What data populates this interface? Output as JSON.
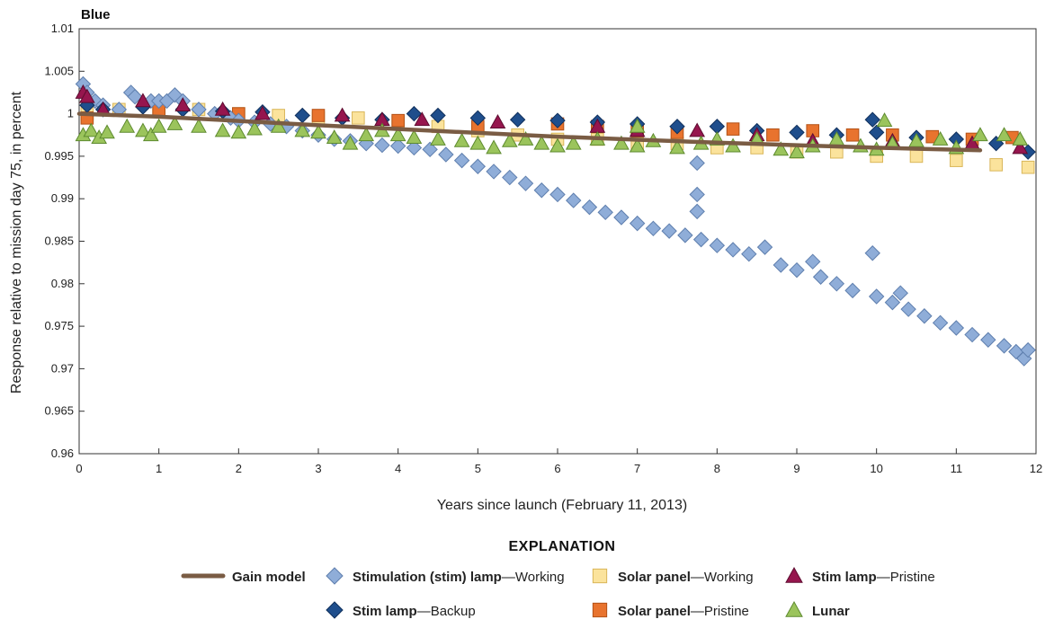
{
  "chart_data": {
    "type": "scatter",
    "title": "Blue",
    "xlabel": "Years since launch (February 11, 2013)",
    "ylabel": "Response relative to mission day 75, in percent",
    "xlim": [
      0,
      12
    ],
    "ylim": [
      0.96,
      1.01
    ],
    "xticks": [
      "0",
      "1",
      "2",
      "3",
      "4",
      "5",
      "6",
      "7",
      "8",
      "9",
      "10",
      "11",
      "12"
    ],
    "yticks": [
      "0.96",
      "0.965",
      "0.97",
      "0.975",
      "0.98",
      "0.985",
      "0.99",
      "0.995",
      "1",
      "1.005",
      "1.01"
    ],
    "grid": false,
    "legend_heading": "EXPLANATION",
    "legend_placement": "bottom",
    "series": [
      {
        "legend_bold": "Gain model",
        "legend_rest": "",
        "marker": "line",
        "color": "#7a5c44",
        "points": [
          [
            0.0,
            1.0
          ],
          [
            1,
            0.99965
          ],
          [
            2,
            0.99915
          ],
          [
            3,
            0.99865
          ],
          [
            4,
            0.9982
          ],
          [
            5,
            0.99775
          ],
          [
            6,
            0.9973
          ],
          [
            7,
            0.99695
          ],
          [
            8,
            0.9966
          ],
          [
            9,
            0.9963
          ],
          [
            10,
            0.996
          ],
          [
            11.3,
            0.9957
          ]
        ]
      },
      {
        "legend_bold": "Stimulation (stim) lamp",
        "legend_rest": "—Working",
        "marker": "diamond",
        "color": "#8fadd8",
        "stroke": "#5f7fae",
        "points": [
          [
            0.05,
            1.0035
          ],
          [
            0.1,
            1.0025
          ],
          [
            0.2,
            1.0015
          ],
          [
            0.3,
            1.001
          ],
          [
            0.5,
            1.0005
          ],
          [
            0.65,
            1.0025
          ],
          [
            0.7,
            1.002
          ],
          [
            0.9,
            1.0015
          ],
          [
            1.0,
            1.0015
          ],
          [
            1.1,
            1.0015
          ],
          [
            1.2,
            1.0022
          ],
          [
            1.3,
            1.0015
          ],
          [
            1.5,
            1.0005
          ],
          [
            1.7,
            1.0
          ],
          [
            1.9,
            0.9995
          ],
          [
            2.0,
            0.9992
          ],
          [
            2.2,
            0.999
          ],
          [
            2.4,
            0.9988
          ],
          [
            2.6,
            0.9985
          ],
          [
            2.8,
            0.998
          ],
          [
            3.0,
            0.9975
          ],
          [
            3.2,
            0.997
          ],
          [
            3.4,
            0.9968
          ],
          [
            3.6,
            0.9965
          ],
          [
            3.8,
            0.9963
          ],
          [
            4.0,
            0.9962
          ],
          [
            4.2,
            0.996
          ],
          [
            4.4,
            0.9958
          ],
          [
            4.6,
            0.9952
          ],
          [
            4.8,
            0.9945
          ],
          [
            5.0,
            0.9938
          ],
          [
            5.2,
            0.9932
          ],
          [
            5.4,
            0.9925
          ],
          [
            5.6,
            0.9918
          ],
          [
            5.8,
            0.991
          ],
          [
            6.0,
            0.9905
          ],
          [
            6.2,
            0.9898
          ],
          [
            6.4,
            0.989
          ],
          [
            6.6,
            0.9884
          ],
          [
            6.8,
            0.9878
          ],
          [
            7.0,
            0.9871
          ],
          [
            7.2,
            0.9865
          ],
          [
            7.4,
            0.9862
          ],
          [
            7.6,
            0.9857
          ],
          [
            7.75,
            0.9905
          ],
          [
            7.75,
            0.9885
          ],
          [
            7.75,
            0.9942
          ],
          [
            7.8,
            0.9852
          ],
          [
            8.0,
            0.9845
          ],
          [
            8.2,
            0.984
          ],
          [
            8.4,
            0.9835
          ],
          [
            8.6,
            0.9843
          ],
          [
            8.8,
            0.9822
          ],
          [
            9.0,
            0.9816
          ],
          [
            9.2,
            0.9826
          ],
          [
            9.3,
            0.9808
          ],
          [
            9.5,
            0.98
          ],
          [
            9.7,
            0.9792
          ],
          [
            9.95,
            0.9836
          ],
          [
            10.0,
            0.9785
          ],
          [
            10.2,
            0.9778
          ],
          [
            10.3,
            0.9789
          ],
          [
            10.4,
            0.977
          ],
          [
            10.6,
            0.9762
          ],
          [
            10.8,
            0.9754
          ],
          [
            11.0,
            0.9748
          ],
          [
            11.2,
            0.974
          ],
          [
            11.4,
            0.9734
          ],
          [
            11.6,
            0.9727
          ],
          [
            11.75,
            0.972
          ],
          [
            11.85,
            0.9712
          ],
          [
            11.9,
            0.9722
          ]
        ]
      },
      {
        "legend_bold": "Stim lamp",
        "legend_rest": "—Backup",
        "marker": "diamond",
        "color": "#1f4e8c",
        "stroke": "#10305c",
        "points": [
          [
            0.1,
            1.001
          ],
          [
            0.3,
            1.0005
          ],
          [
            0.8,
            1.0008
          ],
          [
            1.3,
            1.0005
          ],
          [
            1.8,
            1.0003
          ],
          [
            2.3,
            1.0002
          ],
          [
            2.8,
            0.9998
          ],
          [
            3.3,
            0.9995
          ],
          [
            3.8,
            0.9993
          ],
          [
            4.2,
            1.0
          ],
          [
            4.5,
            0.9998
          ],
          [
            5.0,
            0.9995
          ],
          [
            5.5,
            0.9993
          ],
          [
            6.0,
            0.9992
          ],
          [
            6.5,
            0.999
          ],
          [
            7.0,
            0.9988
          ],
          [
            7.5,
            0.9985
          ],
          [
            8.0,
            0.9985
          ],
          [
            8.5,
            0.998
          ],
          [
            9.0,
            0.9978
          ],
          [
            9.5,
            0.9975
          ],
          [
            9.95,
            0.9993
          ],
          [
            10.0,
            0.9978
          ],
          [
            10.5,
            0.9972
          ],
          [
            11.0,
            0.997
          ],
          [
            11.5,
            0.9965
          ],
          [
            11.9,
            0.9955
          ]
        ]
      },
      {
        "legend_bold": "Solar panel",
        "legend_rest": "—Working",
        "marker": "square",
        "color": "#fbe39c",
        "stroke": "#d9b659",
        "points": [
          [
            0.1,
            1.0
          ],
          [
            0.5,
            1.0005
          ],
          [
            1.0,
            1.0005
          ],
          [
            1.5,
            1.0005
          ],
          [
            2.0,
            1.0
          ],
          [
            2.5,
            0.9998
          ],
          [
            3.0,
            0.9995
          ],
          [
            3.5,
            0.9995
          ],
          [
            4.0,
            0.999
          ],
          [
            4.5,
            0.9985
          ],
          [
            5.0,
            0.998
          ],
          [
            5.5,
            0.9975
          ],
          [
            6.0,
            0.997
          ],
          [
            6.5,
            0.997
          ],
          [
            7.0,
            0.9965
          ],
          [
            7.5,
            0.9965
          ],
          [
            8.0,
            0.996
          ],
          [
            8.5,
            0.996
          ],
          [
            9.0,
            0.9955
          ],
          [
            9.5,
            0.9955
          ],
          [
            10.0,
            0.995
          ],
          [
            10.5,
            0.995
          ],
          [
            11.0,
            0.9945
          ],
          [
            11.5,
            0.994
          ],
          [
            11.9,
            0.9937
          ]
        ]
      },
      {
        "legend_bold": "Solar panel",
        "legend_rest": "—Pristine",
        "marker": "square",
        "color": "#e8732e",
        "stroke": "#b35218",
        "points": [
          [
            0.1,
            0.9995
          ],
          [
            1.0,
            1.0005
          ],
          [
            2.0,
            1.0
          ],
          [
            3.0,
            0.9998
          ],
          [
            4.0,
            0.9992
          ],
          [
            5.0,
            0.9985
          ],
          [
            6.0,
            0.9988
          ],
          [
            6.5,
            0.9985
          ],
          [
            7.0,
            0.998
          ],
          [
            7.5,
            0.9978
          ],
          [
            8.2,
            0.9982
          ],
          [
            8.7,
            0.9975
          ],
          [
            9.2,
            0.998
          ],
          [
            9.7,
            0.9975
          ],
          [
            10.2,
            0.9975
          ],
          [
            10.7,
            0.9973
          ],
          [
            11.2,
            0.997
          ],
          [
            11.7,
            0.9972
          ]
        ]
      },
      {
        "legend_bold": "Stim lamp",
        "legend_rest": "—Pristine",
        "marker": "triangle",
        "color": "#96164e",
        "stroke": "#5e0c30",
        "points": [
          [
            0.05,
            1.0025
          ],
          [
            0.1,
            1.002
          ],
          [
            0.3,
            1.0005
          ],
          [
            0.8,
            1.0015
          ],
          [
            1.3,
            1.001
          ],
          [
            1.8,
            1.0005
          ],
          [
            2.3,
            1.0
          ],
          [
            3.3,
            0.9998
          ],
          [
            3.8,
            0.9993
          ],
          [
            4.3,
            0.9993
          ],
          [
            5.25,
            0.999
          ],
          [
            6.5,
            0.9985
          ],
          [
            7.0,
            0.998
          ],
          [
            7.75,
            0.998
          ],
          [
            8.5,
            0.9975
          ],
          [
            9.2,
            0.9968
          ],
          [
            10.2,
            0.9968
          ],
          [
            11.2,
            0.9965
          ],
          [
            11.8,
            0.996
          ]
        ]
      },
      {
        "legend_bold": "Lunar",
        "legend_rest": "",
        "marker": "triangle",
        "color": "#9bc45c",
        "stroke": "#5d8a2e",
        "points": [
          [
            0.05,
            0.9975
          ],
          [
            0.15,
            0.998
          ],
          [
            0.25,
            0.9972
          ],
          [
            0.35,
            0.9978
          ],
          [
            0.6,
            0.9985
          ],
          [
            0.8,
            0.998
          ],
          [
            0.9,
            0.9975
          ],
          [
            1.0,
            0.9985
          ],
          [
            1.2,
            0.9988
          ],
          [
            1.5,
            0.9985
          ],
          [
            1.8,
            0.998
          ],
          [
            2.0,
            0.9978
          ],
          [
            2.2,
            0.9982
          ],
          [
            2.5,
            0.9985
          ],
          [
            2.8,
            0.998
          ],
          [
            3.0,
            0.9978
          ],
          [
            3.2,
            0.9972
          ],
          [
            3.4,
            0.9965
          ],
          [
            3.6,
            0.9975
          ],
          [
            3.8,
            0.998
          ],
          [
            4.0,
            0.9975
          ],
          [
            4.2,
            0.9972
          ],
          [
            4.5,
            0.997
          ],
          [
            4.8,
            0.9968
          ],
          [
            5.0,
            0.9965
          ],
          [
            5.2,
            0.996
          ],
          [
            5.4,
            0.9968
          ],
          [
            5.6,
            0.997
          ],
          [
            5.8,
            0.9965
          ],
          [
            6.0,
            0.9962
          ],
          [
            6.2,
            0.9965
          ],
          [
            6.5,
            0.997
          ],
          [
            6.8,
            0.9965
          ],
          [
            7.0,
            0.9962
          ],
          [
            7.2,
            0.9968
          ],
          [
            7.5,
            0.996
          ],
          [
            7.8,
            0.9965
          ],
          [
            8.0,
            0.997
          ],
          [
            8.2,
            0.9962
          ],
          [
            8.5,
            0.997
          ],
          [
            8.8,
            0.9958
          ],
          [
            9.0,
            0.9955
          ],
          [
            9.2,
            0.9962
          ],
          [
            9.5,
            0.997
          ],
          [
            9.8,
            0.9962
          ],
          [
            10.0,
            0.9958
          ],
          [
            10.2,
            0.9965
          ],
          [
            10.5,
            0.9968
          ],
          [
            10.8,
            0.997
          ],
          [
            11.0,
            0.996
          ],
          [
            11.3,
            0.9975
          ],
          [
            11.6,
            0.9975
          ],
          [
            11.8,
            0.997
          ],
          [
            10.1,
            0.9992
          ],
          [
            7.0,
            0.9985
          ]
        ]
      }
    ]
  }
}
